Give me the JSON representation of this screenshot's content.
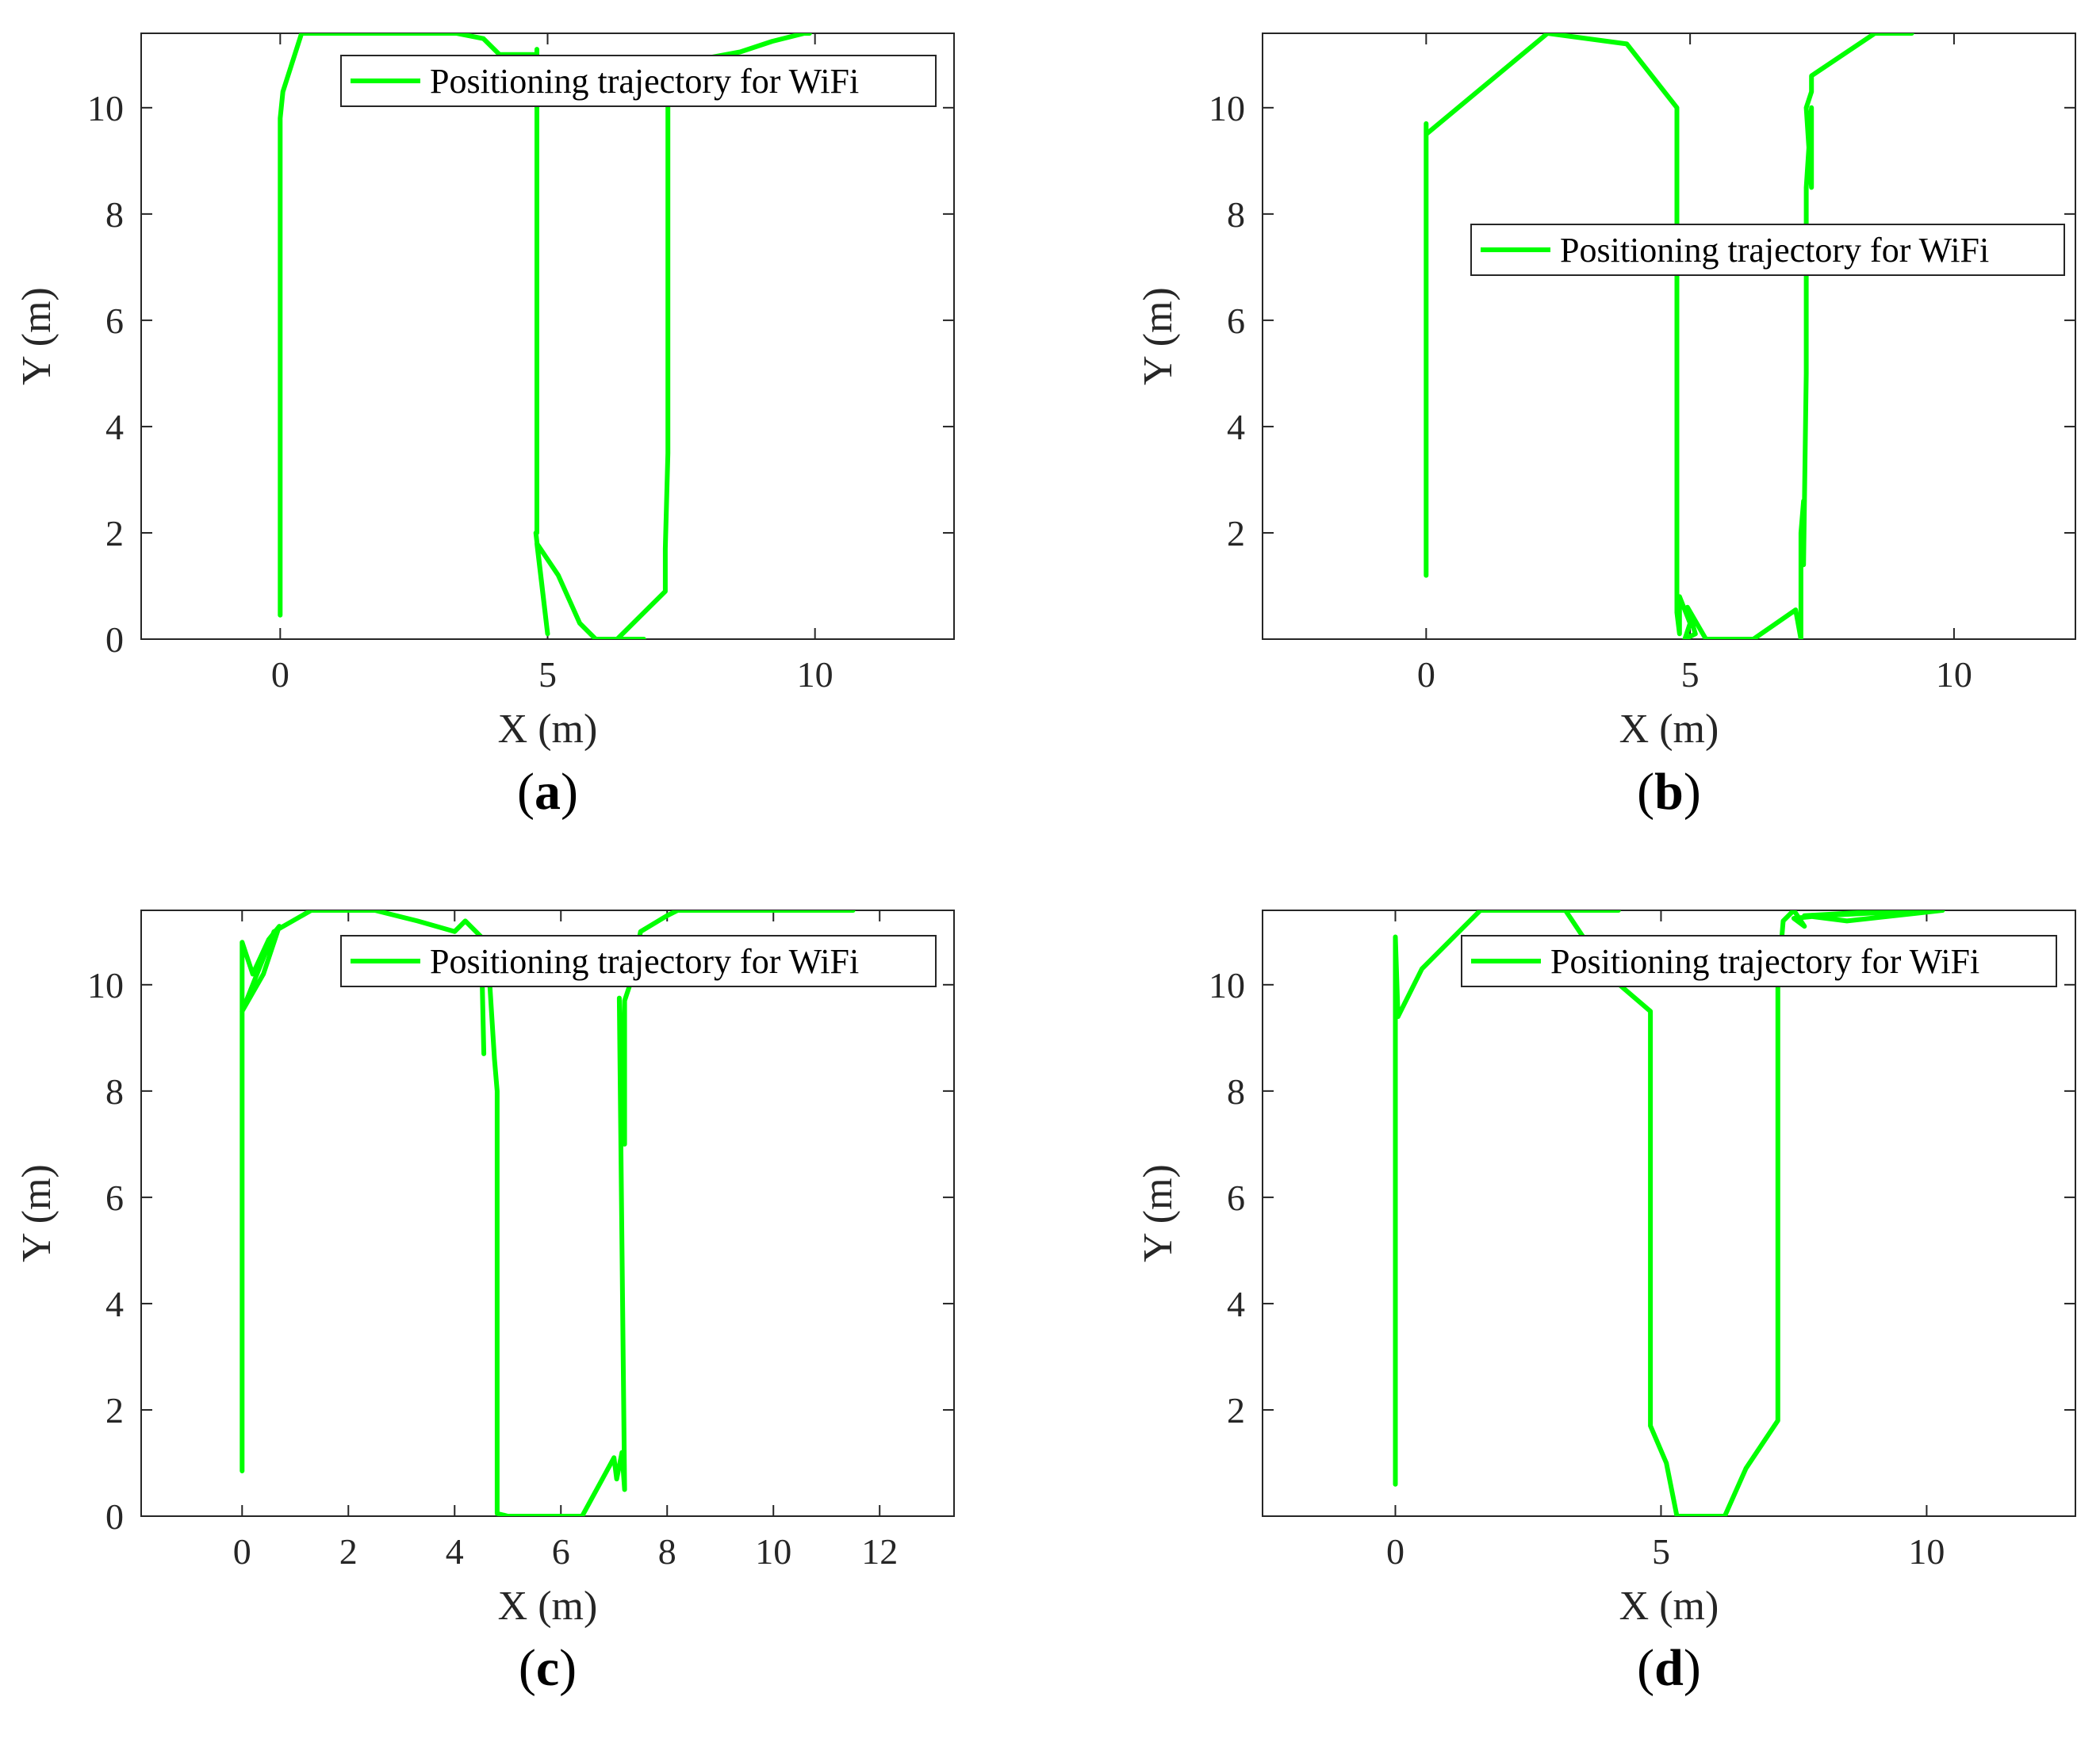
{
  "figure": {
    "line_color": "#00ff00",
    "axis_color": "#262626",
    "panel_labels": [
      "(a)",
      "(b)",
      "(c)",
      "(d)"
    ]
  },
  "chart_data": [
    {
      "type": "line",
      "panel": "(a)",
      "xlabel": "X (m)",
      "ylabel": "Y (m)",
      "xlim": [
        -2.6,
        12.6
      ],
      "ylim": [
        0,
        11.4
      ],
      "xticks": [
        0,
        5,
        10
      ],
      "yticks": [
        0,
        2,
        4,
        6,
        8,
        10
      ],
      "legend_position": "top-right",
      "series": [
        {
          "name": "Positioning trajectory for WiFi",
          "x": [
            0.0,
            0.0,
            0.0,
            0.05,
            0.4,
            3.3,
            3.8,
            4.1,
            4.8,
            4.8,
            4.8,
            4.78,
            5.0,
            4.8,
            5.2,
            5.6,
            5.9,
            6.3,
            6.8,
            6.3,
            7.2,
            7.2,
            7.25,
            7.25,
            7.25,
            8.6,
            9.2,
            9.8,
            9.9
          ],
          "y": [
            0.45,
            5.0,
            9.8,
            10.3,
            11.4,
            11.4,
            11.3,
            11.0,
            11.0,
            11.1,
            2.0,
            2.0,
            0.1,
            1.8,
            1.2,
            0.3,
            0.0,
            0.0,
            0.0,
            0.0,
            0.9,
            1.7,
            3.5,
            10.0,
            10.8,
            11.05,
            11.25,
            11.4,
            11.4
          ]
        }
      ]
    },
    {
      "type": "line",
      "panel": "(b)",
      "xlabel": "X (m)",
      "ylabel": "Y (m)",
      "xlim": [
        -3.1,
        12.3
      ],
      "ylim": [
        0,
        11.4
      ],
      "xticks": [
        0,
        5,
        10
      ],
      "yticks": [
        2,
        4,
        6,
        8,
        10
      ],
      "legend_position": "top-right",
      "series": [
        {
          "name": "Positioning trajectory for WiFi",
          "x": [
            0.0,
            0.0,
            0.0,
            2.3,
            3.8,
            4.75,
            4.75,
            4.8,
            4.8,
            5.0,
            4.9,
            5.1,
            4.95,
            5.3,
            6.2,
            7.0,
            7.1,
            7.1,
            7.15,
            7.15,
            7.2,
            7.2,
            7.3,
            7.3,
            7.2,
            7.3,
            7.3,
            8.5,
            9.2
          ],
          "y": [
            1.2,
            9.7,
            9.5,
            11.4,
            11.2,
            10.0,
            0.5,
            0.1,
            0.8,
            0.3,
            0.0,
            0.1,
            0.6,
            0.0,
            0.0,
            0.55,
            0.0,
            2.0,
            2.6,
            1.4,
            5.0,
            8.5,
            10.0,
            8.5,
            10.0,
            10.3,
            10.6,
            11.4,
            11.4
          ]
        }
      ]
    },
    {
      "type": "line",
      "panel": "(c)",
      "xlabel": "X (m)",
      "ylabel": "Y (m)",
      "xlim": [
        -1.9,
        13.4
      ],
      "ylim": [
        0,
        11.4
      ],
      "xticks": [
        0,
        2,
        4,
        6,
        8,
        10,
        12
      ],
      "yticks": [
        0,
        2,
        4,
        6,
        8,
        10
      ],
      "legend_position": "top-right",
      "series": [
        {
          "name": "Positioning trajectory for WiFi",
          "x": [
            0.0,
            0.0,
            0.0,
            0.2,
            0.5,
            0.7,
            0.4,
            0.0,
            0.6,
            1.3,
            2.5,
            3.3,
            4.0,
            4.2,
            4.5,
            4.55,
            4.5,
            4.65,
            4.75,
            4.8,
            4.8,
            5.0,
            5.5,
            6.4,
            7.0,
            7.05,
            7.15,
            7.2,
            7.1,
            7.2,
            7.2,
            7.3,
            7.5,
            8.0,
            8.2,
            10.0,
            11.5
          ],
          "y": [
            0.85,
            4.0,
            10.8,
            10.2,
            10.85,
            11.1,
            10.2,
            9.5,
            11.0,
            11.4,
            11.4,
            11.2,
            11.0,
            11.2,
            10.9,
            8.7,
            10.8,
            10.2,
            8.6,
            8.0,
            0.05,
            0.0,
            0.0,
            0.0,
            1.1,
            0.7,
            1.2,
            0.5,
            9.75,
            7.0,
            9.7,
            10.0,
            11.0,
            11.3,
            11.4,
            11.4,
            11.4
          ]
        }
      ]
    },
    {
      "type": "line",
      "panel": "(d)",
      "xlabel": "X (m)",
      "ylabel": "Y (m)",
      "xlim": [
        -2.5,
        12.8
      ],
      "ylim": [
        0,
        11.4
      ],
      "xticks": [
        0,
        5,
        10
      ],
      "yticks": [
        2,
        4,
        6,
        8,
        10
      ],
      "legend_position": "top-right",
      "series": [
        {
          "name": "Positioning trajectory for WiFi",
          "x": [
            0.0,
            0.0,
            0.0,
            0.05,
            0.5,
            1.2,
            1.6,
            4.2,
            3.2,
            3.6,
            4.1,
            4.8,
            4.8,
            5.1,
            5.3,
            5.6,
            6.2,
            6.6,
            7.2,
            7.2,
            7.3,
            7.5,
            7.7,
            7.5,
            8.0,
            9.0,
            10.3,
            8.5,
            7.7,
            9.5,
            10.3
          ],
          "y": [
            0.6,
            7.0,
            10.9,
            9.4,
            10.3,
            11.0,
            11.4,
            11.4,
            11.4,
            10.8,
            10.1,
            9.5,
            1.7,
            1.0,
            0.0,
            0.0,
            0.0,
            0.9,
            1.8,
            10.0,
            11.2,
            11.4,
            11.1,
            11.25,
            11.3,
            11.35,
            11.4,
            11.2,
            11.3,
            11.4,
            11.4
          ]
        }
      ]
    }
  ]
}
